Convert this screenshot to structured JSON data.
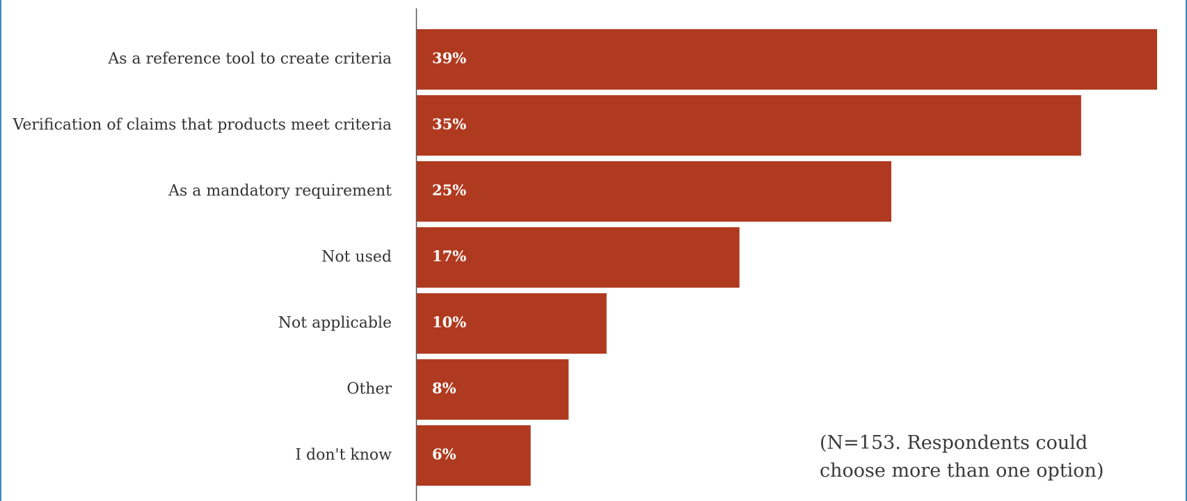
{
  "chart_data": {
    "type": "bar",
    "orientation": "horizontal",
    "categories": [
      "As a reference tool to create criteria",
      "Verification of claims that products meet criteria",
      "As a mandatory requirement",
      "Not used",
      "Not applicable",
      "Other",
      "I don't know"
    ],
    "values": [
      39,
      35,
      25,
      17,
      10,
      8,
      6
    ],
    "value_labels": [
      "39%",
      "35%",
      "25%",
      "17%",
      "10%",
      "8%",
      "6%"
    ],
    "xlim": [
      0,
      39
    ],
    "grid": false,
    "bar_color": "#b03a1f",
    "title": "",
    "xlabel": "",
    "ylabel": ""
  },
  "note": "(N=153. Respondents could choose more than one option)"
}
